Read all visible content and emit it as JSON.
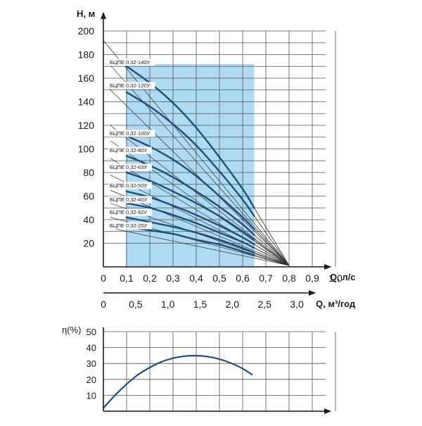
{
  "chart_data": [
    {
      "type": "line",
      "title": "",
      "ylabel": "H, м",
      "xlabel": "Q, л/с",
      "xlabel2": "Q, м³/год",
      "xlim": [
        0,
        1.0
      ],
      "ylim": [
        0,
        200
      ],
      "x_ticks": [
        "0",
        "0,1",
        "0,2",
        "0,3",
        "0,4",
        "0,5",
        "0,6",
        "0,7",
        "0,8",
        "0,9",
        "1,0"
      ],
      "y_ticks": [
        "20",
        "40",
        "60",
        "80",
        "100",
        "120",
        "140",
        "160",
        "180",
        "200"
      ],
      "x2_ticks": [
        "0",
        "0,5",
        "1,0",
        "1,5",
        "2,0",
        "2,5",
        "3,0"
      ],
      "grid": true,
      "working_range": [
        0.097,
        0.65
      ],
      "colors": {
        "curve": "#1f4e7a",
        "band": "#aedaf4",
        "grid": "#555555",
        "guide": "#333333"
      },
      "series": [
        {
          "name": "БЦПЕ 0,32-140У",
          "x": [
            0.1,
            0.2,
            0.3,
            0.4,
            0.5,
            0.6,
            0.65
          ],
          "y": [
            170,
            156,
            139,
            118,
            93,
            66,
            50
          ]
        },
        {
          "name": "БЦПЕ 0,32-120У",
          "x": [
            0.1,
            0.2,
            0.3,
            0.4,
            0.5,
            0.6,
            0.65
          ],
          "y": [
            148,
            136,
            121,
            103,
            81,
            57,
            43
          ]
        },
        {
          "name": "БЦПЕ 0,32-100У",
          "x": [
            0.1,
            0.2,
            0.3,
            0.4,
            0.5,
            0.6,
            0.65
          ],
          "y": [
            111,
            102,
            91,
            77,
            60,
            42,
            32
          ]
        },
        {
          "name": "БЦПЕ 0,32-80У",
          "x": [
            0.1,
            0.2,
            0.3,
            0.4,
            0.5,
            0.6,
            0.65
          ],
          "y": [
            94,
            86,
            76,
            64,
            51,
            36,
            27
          ]
        },
        {
          "name": "БЦПЕ 0,32-63У",
          "x": [
            0.1,
            0.2,
            0.3,
            0.4,
            0.5,
            0.6,
            0.65
          ],
          "y": [
            80,
            73,
            64,
            54,
            43,
            30,
            23
          ]
        },
        {
          "name": "БЦПЕ 0,32-50У",
          "x": [
            0.1,
            0.2,
            0.3,
            0.4,
            0.5,
            0.6,
            0.65
          ],
          "y": [
            64,
            59,
            52,
            44,
            35,
            25,
            19
          ]
        },
        {
          "name": "БЦПЕ 0,32-40У",
          "x": [
            0.1,
            0.2,
            0.3,
            0.4,
            0.5,
            0.6,
            0.65
          ],
          "y": [
            54,
            50,
            44,
            37,
            29,
            21,
            16
          ]
        },
        {
          "name": "БЦПЕ 0,32-32У",
          "x": [
            0.1,
            0.2,
            0.3,
            0.4,
            0.5,
            0.6,
            0.65
          ],
          "y": [
            42,
            38,
            34,
            29,
            23,
            16,
            12
          ]
        },
        {
          "name": "БЦПЕ 0,32-25У",
          "x": [
            0.1,
            0.2,
            0.3,
            0.4,
            0.5,
            0.6,
            0.65
          ],
          "y": [
            34,
            31,
            28,
            23,
            19,
            13,
            10
          ]
        }
      ]
    },
    {
      "type": "line",
      "title": "",
      "ylabel": "η(%)",
      "xlabel": "",
      "xlim": [
        0,
        1.0
      ],
      "ylim": [
        0,
        50
      ],
      "y_ticks": [
        "10",
        "20",
        "30",
        "40",
        "50"
      ],
      "grid": true,
      "series": [
        {
          "name": "",
          "x": [
            0,
            0.05,
            0.1,
            0.15,
            0.2,
            0.25,
            0.3,
            0.35,
            0.4,
            0.45,
            0.5,
            0.55,
            0.6,
            0.64
          ],
          "y": [
            2,
            10,
            17,
            23,
            27.5,
            31,
            33.3,
            34.6,
            34.9,
            34.3,
            32.7,
            30.2,
            26.8,
            23
          ]
        }
      ]
    }
  ]
}
